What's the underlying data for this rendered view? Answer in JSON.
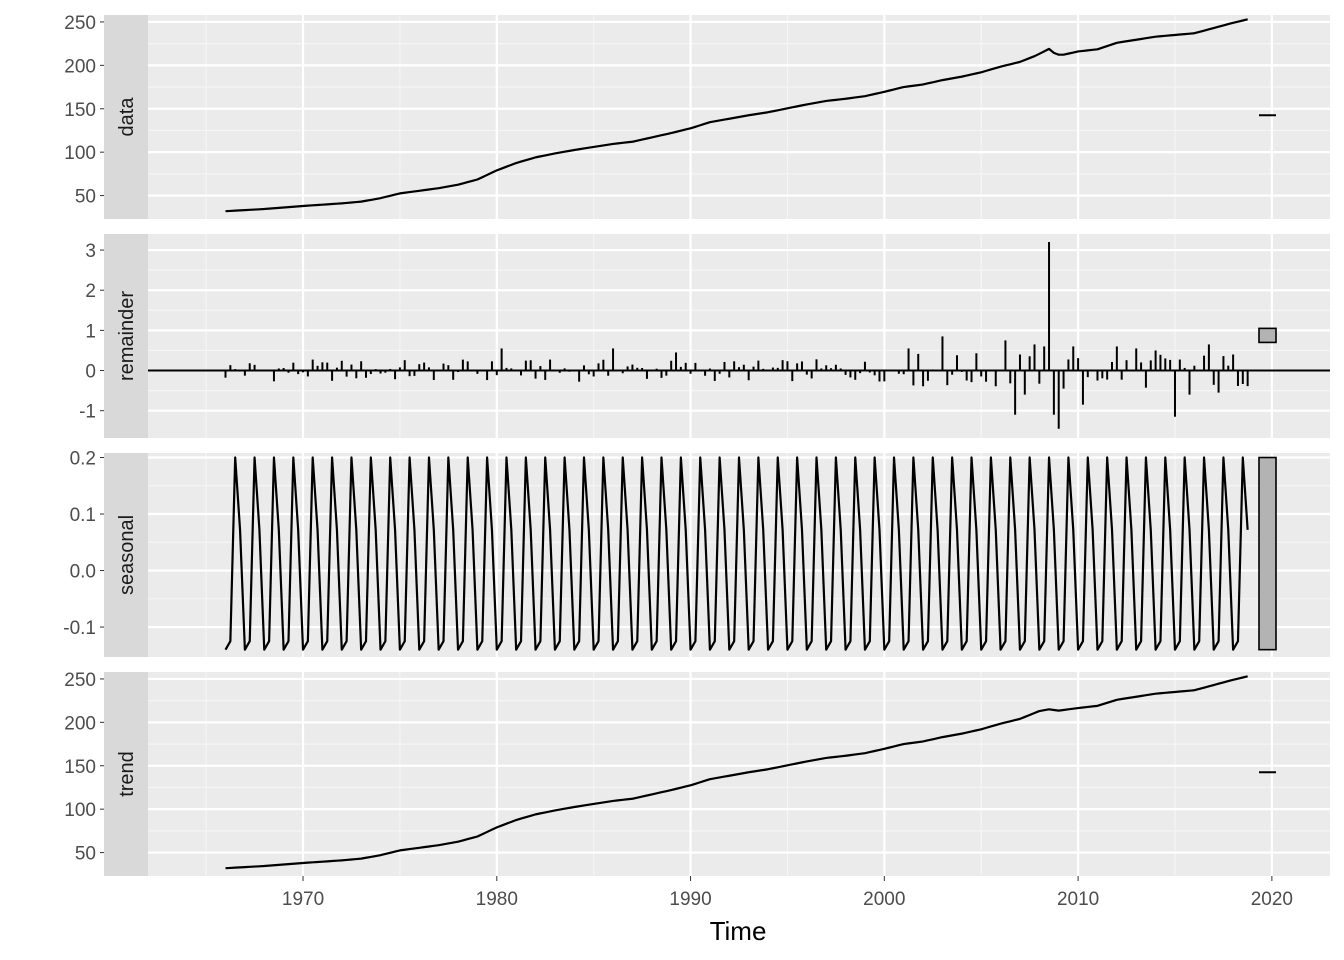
{
  "chart_data": {
    "type": "line",
    "layout": "stl-decomposition-facets",
    "x_axis": {
      "label": "Time",
      "range": [
        1962,
        2023
      ],
      "ticks": [
        1970,
        1980,
        1990,
        2000,
        2010,
        2020
      ],
      "tick_labels": [
        "1970",
        "1980",
        "1990",
        "2000",
        "2010",
        "2020"
      ],
      "frequency": "quarterly",
      "start": 1966.0,
      "end": 2018.75
    },
    "grid": true,
    "panel_background": "#ebebeb",
    "strip_background": "#d9d9d9",
    "line_color": "#000000",
    "range_bar_fill": "#b3b3b3",
    "panels": [
      {
        "name": "data",
        "strip_label": "data",
        "type": "line",
        "ylim": [
          23,
          258
        ],
        "y_ticks": [
          50,
          100,
          150,
          200,
          250
        ],
        "y_tick_labels": [
          "50",
          "100",
          "150",
          "200",
          "250"
        ],
        "range_bar": [
          141,
          144
        ],
        "keypoints": [
          [
            1966.0,
            32.0
          ],
          [
            1968.0,
            34.5
          ],
          [
            1970.0,
            38.0
          ],
          [
            1972.0,
            41.0
          ],
          [
            1973.0,
            43.0
          ],
          [
            1974.0,
            47.0
          ],
          [
            1975.0,
            52.5
          ],
          [
            1976.0,
            55.5
          ],
          [
            1977.0,
            58.5
          ],
          [
            1978.0,
            62.5
          ],
          [
            1979.0,
            68.5
          ],
          [
            1980.0,
            79.0
          ],
          [
            1981.0,
            87.5
          ],
          [
            1982.0,
            94.0
          ],
          [
            1983.0,
            98.5
          ],
          [
            1984.0,
            102.5
          ],
          [
            1985.0,
            106.0
          ],
          [
            1986.0,
            109.5
          ],
          [
            1987.0,
            112.0
          ],
          [
            1988.0,
            117.0
          ],
          [
            1989.0,
            122.0
          ],
          [
            1990.0,
            127.5
          ],
          [
            1991.0,
            134.5
          ],
          [
            1992.0,
            138.5
          ],
          [
            1993.0,
            142.5
          ],
          [
            1994.0,
            146.0
          ],
          [
            1995.0,
            150.5
          ],
          [
            1996.0,
            155.0
          ],
          [
            1997.0,
            159.0
          ],
          [
            1998.0,
            161.5
          ],
          [
            1999.0,
            164.5
          ],
          [
            2000.0,
            169.5
          ],
          [
            2001.0,
            175.0
          ],
          [
            2002.0,
            178.0
          ],
          [
            2003.0,
            183.0
          ],
          [
            2004.0,
            187.0
          ],
          [
            2005.0,
            192.0
          ],
          [
            2006.0,
            198.5
          ],
          [
            2007.0,
            204.0
          ],
          [
            2007.8,
            211.0
          ],
          [
            2008.5,
            219.0
          ],
          [
            2008.85,
            212.5
          ],
          [
            2009.2,
            212.0
          ],
          [
            2010.0,
            216.0
          ],
          [
            2011.0,
            218.5
          ],
          [
            2012.0,
            226.0
          ],
          [
            2013.0,
            229.5
          ],
          [
            2014.0,
            233.0
          ],
          [
            2015.0,
            235.0
          ],
          [
            2016.0,
            237.0
          ],
          [
            2017.0,
            243.0
          ],
          [
            2018.0,
            249.0
          ],
          [
            2018.75,
            253.0
          ]
        ]
      },
      {
        "name": "remainder",
        "strip_label": "remainder",
        "type": "bar",
        "ylim": [
          -1.68,
          3.4
        ],
        "y_ticks": [
          -1,
          0,
          1,
          2,
          3
        ],
        "y_tick_labels": [
          "-1",
          "0",
          "1",
          "2",
          "3"
        ],
        "range_bar": [
          0.7,
          1.05
        ],
        "spikes": [
          [
            2006.75,
            -1.1
          ],
          [
            2007.0,
            0.4
          ],
          [
            2007.25,
            -0.6
          ],
          [
            2007.75,
            0.65
          ],
          [
            2008.25,
            0.6
          ],
          [
            2008.5,
            3.2
          ],
          [
            2008.75,
            -1.1
          ],
          [
            2009.0,
            -1.45
          ],
          [
            2009.25,
            -0.45
          ],
          [
            2009.75,
            0.6
          ],
          [
            2010.25,
            -0.85
          ],
          [
            2012.0,
            0.6
          ],
          [
            2013.0,
            0.55
          ],
          [
            2014.0,
            0.5
          ],
          [
            2015.0,
            -1.15
          ],
          [
            2015.75,
            -0.6
          ],
          [
            2016.75,
            0.65
          ],
          [
            2017.25,
            -0.55
          ],
          [
            2018.0,
            0.4
          ],
          [
            2003.0,
            0.85
          ],
          [
            2006.25,
            0.75
          ],
          [
            1980.25,
            0.55
          ],
          [
            1986.0,
            0.55
          ],
          [
            1989.25,
            0.45
          ],
          [
            2001.25,
            0.55
          ]
        ]
      },
      {
        "name": "seasonal",
        "strip_label": "seasonal",
        "type": "line",
        "ylim": [
          -0.153,
          0.208
        ],
        "y_ticks": [
          -0.1,
          0.0,
          0.1,
          0.2
        ],
        "y_tick_labels": [
          "-0.1",
          "0.0",
          "0.1",
          "0.2"
        ],
        "range_bar": [
          -0.14,
          0.2
        ],
        "quarterly_pattern": [
          -0.14,
          -0.125,
          0.2,
          0.072
        ]
      },
      {
        "name": "trend",
        "strip_label": "trend",
        "type": "line",
        "ylim": [
          23,
          258
        ],
        "y_ticks": [
          50,
          100,
          150,
          200,
          250
        ],
        "y_tick_labels": [
          "50",
          "100",
          "150",
          "200",
          "250"
        ],
        "range_bar": [
          141,
          144
        ],
        "keypoints": [
          [
            1966.0,
            32.0
          ],
          [
            1968.0,
            34.5
          ],
          [
            1970.0,
            38.0
          ],
          [
            1972.0,
            41.0
          ],
          [
            1973.0,
            43.0
          ],
          [
            1974.0,
            47.0
          ],
          [
            1975.0,
            52.5
          ],
          [
            1976.0,
            55.5
          ],
          [
            1977.0,
            58.5
          ],
          [
            1978.0,
            62.5
          ],
          [
            1979.0,
            68.5
          ],
          [
            1980.0,
            79.0
          ],
          [
            1981.0,
            87.5
          ],
          [
            1982.0,
            94.0
          ],
          [
            1983.0,
            98.5
          ],
          [
            1984.0,
            102.5
          ],
          [
            1985.0,
            106.0
          ],
          [
            1986.0,
            109.5
          ],
          [
            1987.0,
            112.0
          ],
          [
            1988.0,
            117.0
          ],
          [
            1989.0,
            122.0
          ],
          [
            1990.0,
            127.5
          ],
          [
            1991.0,
            134.5
          ],
          [
            1992.0,
            138.5
          ],
          [
            1993.0,
            142.5
          ],
          [
            1994.0,
            146.0
          ],
          [
            1995.0,
            150.5
          ],
          [
            1996.0,
            155.0
          ],
          [
            1997.0,
            159.0
          ],
          [
            1998.0,
            161.5
          ],
          [
            1999.0,
            164.5
          ],
          [
            2000.0,
            169.5
          ],
          [
            2001.0,
            175.0
          ],
          [
            2002.0,
            178.0
          ],
          [
            2003.0,
            183.0
          ],
          [
            2004.0,
            187.0
          ],
          [
            2005.0,
            192.0
          ],
          [
            2006.0,
            198.5
          ],
          [
            2007.0,
            204.0
          ],
          [
            2008.0,
            213.0
          ],
          [
            2008.5,
            215.0
          ],
          [
            2009.0,
            213.5
          ],
          [
            2010.0,
            216.5
          ],
          [
            2011.0,
            219.0
          ],
          [
            2012.0,
            226.0
          ],
          [
            2013.0,
            229.5
          ],
          [
            2014.0,
            233.0
          ],
          [
            2015.0,
            235.0
          ],
          [
            2016.0,
            237.0
          ],
          [
            2017.0,
            243.0
          ],
          [
            2018.0,
            249.0
          ],
          [
            2018.75,
            253.0
          ]
        ]
      }
    ]
  }
}
